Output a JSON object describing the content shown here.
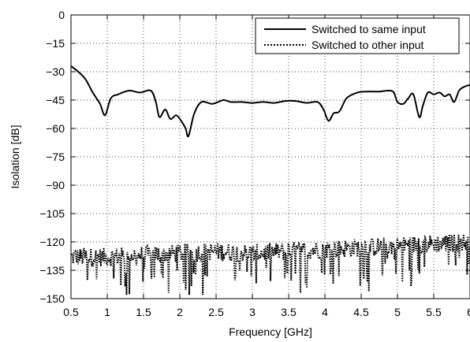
{
  "chart_data": {
    "type": "line",
    "xlabel": "Frequency [GHz]",
    "ylabel": "Isolation [dB]",
    "xlim": [
      0.5,
      6
    ],
    "ylim": [
      -150,
      0
    ],
    "x_ticks": [
      0.5,
      1,
      1.5,
      2,
      2.5,
      3,
      3.5,
      4,
      4.5,
      5,
      5.5,
      6
    ],
    "x_tick_labels": [
      "0.5",
      "1",
      "1.5",
      "2",
      "2.5",
      "3",
      "3.5",
      "4",
      "4.5",
      "5",
      "5.5",
      "6"
    ],
    "y_ticks": [
      0,
      -15,
      -30,
      -45,
      -60,
      -75,
      -90,
      -105,
      -120,
      -135,
      -150
    ],
    "y_tick_labels": [
      "0",
      "−15",
      "−30",
      "−45",
      "−60",
      "−75",
      "−90",
      "−105",
      "−120",
      "−135",
      "−150"
    ],
    "grid": true,
    "legend_position": "top-right",
    "series": [
      {
        "name": "Switched to same input",
        "style": "solid",
        "x": [
          0.5,
          0.6,
          0.7,
          0.8,
          0.9,
          0.97,
          1.05,
          1.15,
          1.3,
          1.45,
          1.6,
          1.67,
          1.72,
          1.8,
          1.87,
          1.95,
          2.02,
          2.08,
          2.12,
          2.2,
          2.3,
          2.45,
          2.6,
          2.7,
          2.85,
          3.0,
          3.15,
          3.3,
          3.45,
          3.6,
          3.75,
          3.9,
          3.98,
          4.05,
          4.12,
          4.2,
          4.3,
          4.45,
          4.6,
          4.75,
          4.88,
          4.95,
          5.0,
          5.08,
          5.15,
          5.22,
          5.3,
          5.35,
          5.42,
          5.5,
          5.58,
          5.65,
          5.72,
          5.78,
          5.85,
          5.92,
          6.0
        ],
        "y": [
          -27,
          -30,
          -34,
          -41,
          -47,
          -53,
          -44,
          -42,
          -40,
          -41,
          -40,
          -46,
          -54,
          -50,
          -55,
          -53,
          -56,
          -60,
          -64,
          -52,
          -46,
          -47,
          -45,
          -46,
          -46,
          -46.5,
          -46,
          -46.5,
          -45.5,
          -45.5,
          -46.5,
          -46,
          -50,
          -56,
          -52,
          -51,
          -44,
          -41,
          -40.5,
          -40.5,
          -40,
          -41,
          -46,
          -47,
          -44,
          -42,
          -54,
          -48,
          -41,
          -42,
          -41,
          -43,
          -42,
          -46,
          -40,
          -38,
          -37
        ]
      },
      {
        "name": "Switched to other input",
        "style": "dotted",
        "mean": [
          -128,
          -128,
          -127,
          -126,
          -125,
          -126,
          -125,
          -124,
          -123,
          -122,
          -121,
          -120
        ],
        "mean_x": [
          0.5,
          1,
          1.5,
          2,
          2.5,
          3,
          3.5,
          4,
          4.5,
          5,
          5.5,
          6
        ],
        "min": -148,
        "max": -116
      }
    ]
  }
}
